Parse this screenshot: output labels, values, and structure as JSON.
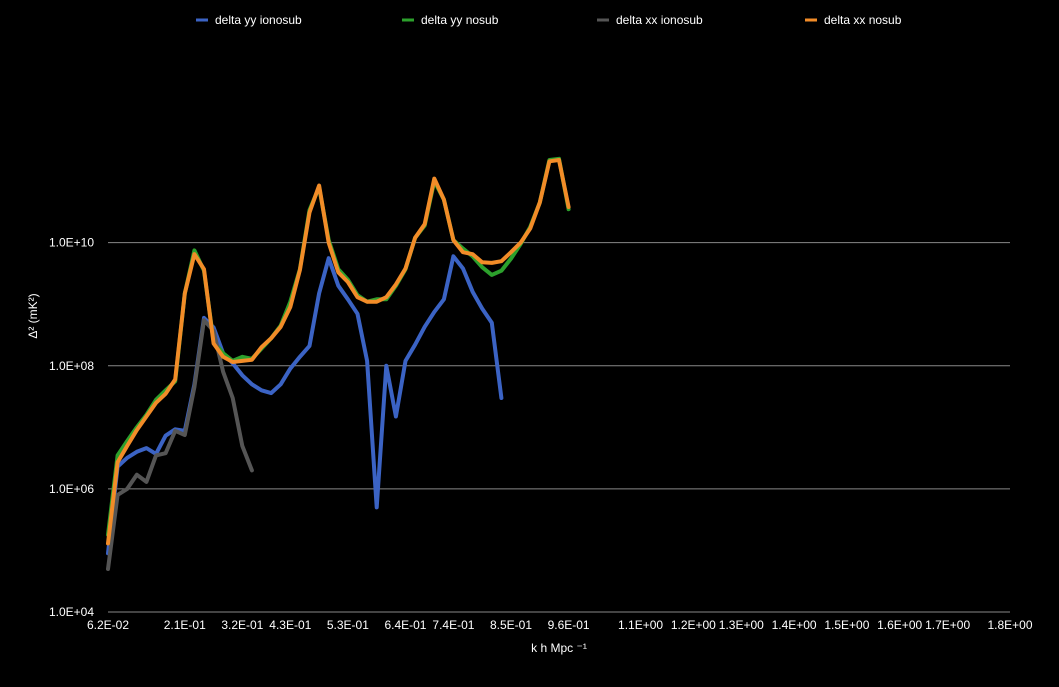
{
  "chart_data": {
    "type": "line",
    "xlabel": "k h Mpc ⁻¹",
    "ylabel": "Δ² (mK²)",
    "y_scale": "log",
    "ylim": [
      10000,
      10000000000000
    ],
    "y_ticks": [
      10000,
      1000000,
      100000000,
      10000000000
    ],
    "y_tick_labels": [
      "1.0E+04",
      "1.0E+06",
      "1.0E+08",
      "1.0E+10"
    ],
    "grid": true,
    "legend_position": "top",
    "x_ticks": [
      0.062,
      0.21,
      0.32,
      0.43,
      0.53,
      0.64,
      0.74,
      0.85,
      0.96,
      1.1,
      1.2,
      1.3,
      1.4,
      1.5,
      1.6,
      1.7,
      1.8
    ],
    "x_tick_labels": [
      "6.2E-02",
      "2.1E-01",
      "3.2E-01",
      "4.3E-01",
      "5.3E-01",
      "6.4E-01",
      "7.4E-01",
      "8.5E-01",
      "9.6E-01",
      "1.1E+00",
      "1.2E+00",
      "1.3E+00",
      "1.4E+00",
      "1.5E+00",
      "1.6E+00",
      "1.7E+00",
      "1.8E+00"
    ],
    "x": [
      0.062,
      0.081,
      0.1,
      0.12,
      0.14,
      0.16,
      0.17,
      0.19,
      0.21,
      0.23,
      0.25,
      0.27,
      0.29,
      0.3,
      0.32,
      0.34,
      0.36,
      0.38,
      0.4,
      0.43,
      0.44,
      0.46,
      0.48,
      0.5,
      0.52,
      0.53,
      0.55,
      0.57,
      0.59,
      0.61,
      0.63,
      0.64,
      0.66,
      0.68,
      0.7,
      0.72,
      0.74,
      0.76,
      0.78,
      0.8,
      0.81,
      0.83,
      0.85,
      0.87,
      0.89,
      0.91,
      0.93,
      0.94,
      0.96,
      0.98,
      1.0,
      1.02,
      1.04,
      1.06,
      1.07,
      1.09,
      1.11,
      1.13,
      1.15,
      1.17,
      1.19,
      1.2,
      1.22,
      1.24,
      1.26,
      1.28,
      1.3,
      1.32,
      1.33,
      1.35,
      1.37,
      1.39,
      1.41,
      1.43,
      1.45,
      1.46,
      1.48,
      1.5,
      1.52,
      1.54,
      1.56,
      1.58,
      1.59,
      1.61,
      1.63,
      1.65,
      1.67,
      1.69,
      1.71,
      1.72,
      1.74,
      1.76,
      1.78,
      1.8,
      1.82
    ],
    "series": [
      {
        "name": "delta yy ionosub",
        "color": "#3b63c4",
        "values": [
          90000,
          2300000,
          3200000,
          4000000,
          4600000,
          3700000,
          7300000,
          9300000,
          8800000,
          50000000,
          600000000,
          420000000,
          160000000,
          110000000,
          70000000,
          50000000,
          40000000,
          36000000,
          50000000,
          90000000,
          140000000,
          210000000,
          1500000000,
          5600000000,
          2000000000,
          1200000000,
          700000000,
          120000000,
          500000,
          100000000,
          15000000,
          120000000,
          220000000,
          430000000,
          750000000,
          1200000000,
          6000000000,
          3800000000,
          1600000000,
          850000000,
          500000000,
          30000000,
          null,
          null,
          null,
          null,
          null,
          null,
          null,
          null,
          null,
          null,
          null,
          null,
          null,
          null,
          null,
          null,
          null,
          null,
          null,
          null,
          null,
          null,
          null,
          null,
          null,
          null,
          null,
          null,
          null,
          null,
          null,
          null,
          null,
          null,
          null,
          null,
          null,
          null,
          null,
          null,
          null,
          null,
          null,
          null,
          null,
          null,
          null,
          null,
          null,
          null,
          null,
          null,
          null
        ]
      },
      {
        "name": "delta yy nosub",
        "color": "#2ca02c",
        "values": [
          180000,
          3500000,
          6000000,
          10000000,
          16000000,
          28000000,
          40000000,
          56000000,
          1500000000,
          7500000000,
          3500000000,
          250000000,
          160000000,
          120000000,
          140000000,
          130000000,
          190000000,
          280000000,
          450000000,
          1100000000,
          3700000000,
          34000000000,
          80000000000,
          11000000000,
          3700000000,
          2500000000,
          1400000000,
          1100000000,
          1200000000,
          1200000000,
          2000000000,
          3700000000,
          12000000000,
          19000000000,
          100000000000,
          50000000000,
          11000000000,
          8000000000,
          6000000000,
          4000000000,
          3000000000,
          3500000000,
          5500000000,
          9500000000,
          18000000000,
          45000000000,
          220000000000,
          230000000000,
          35000000000,
          null,
          null,
          null,
          null,
          null,
          null,
          null,
          null,
          null,
          null,
          null,
          null,
          null,
          null,
          null,
          null,
          null,
          null,
          null,
          null,
          null,
          null,
          null,
          null,
          null,
          null,
          null,
          null,
          null,
          null,
          null,
          null,
          null,
          null,
          null,
          null,
          null,
          null,
          null,
          null,
          null,
          null,
          null,
          null,
          null,
          null
        ]
      },
      {
        "name": "delta xx ionosub",
        "color": "#555555",
        "values": [
          50000,
          800000,
          1000000,
          1700000,
          1300000,
          3500000,
          3800000,
          8800000,
          7500000,
          45000000,
          550000000,
          370000000,
          80000000,
          30000000,
          5000000,
          2000000,
          null,
          null,
          null,
          null,
          null,
          null,
          null,
          null,
          null,
          null,
          null,
          null,
          null,
          null,
          null,
          null,
          null,
          null,
          null,
          null,
          null,
          null,
          null,
          null,
          null,
          null,
          null,
          null,
          null,
          null,
          null,
          null,
          null,
          null,
          null,
          null,
          null,
          null,
          null,
          null,
          null,
          null,
          null,
          null,
          null,
          null,
          null,
          null,
          null,
          null,
          null,
          null,
          null,
          null,
          null,
          null,
          null,
          null,
          null,
          null,
          null,
          null,
          null,
          null,
          null,
          null,
          null,
          null,
          null,
          null,
          null,
          null,
          null,
          null,
          null,
          null,
          null,
          null,
          null
        ]
      },
      {
        "name": "delta xx nosub",
        "color": "#f28c28",
        "values": [
          130000,
          2700000,
          5000000,
          9000000,
          15000000,
          25000000,
          35000000,
          60000000,
          1500000000,
          6500000000,
          3700000000,
          230000000,
          140000000,
          115000000,
          120000000,
          125000000,
          200000000,
          280000000,
          430000000,
          900000000,
          3600000000,
          31000000000,
          85000000000,
          10000000000,
          3300000000,
          2300000000,
          1300000000,
          1100000000,
          1100000000,
          1300000000,
          2100000000,
          3800000000,
          12000000000,
          20000000000,
          110000000000,
          50000000000,
          11000000000,
          7000000000,
          6500000000,
          4800000000,
          4700000000,
          5000000000,
          7000000000,
          10000000000,
          17000000000,
          45000000000,
          210000000000,
          220000000000,
          38000000000,
          null,
          null,
          null,
          null,
          null,
          null,
          null,
          null,
          null,
          null,
          null,
          null,
          null,
          null,
          null,
          null,
          null,
          null,
          null,
          null,
          null,
          null,
          null,
          null,
          null,
          null,
          null,
          null,
          null,
          null,
          null,
          null,
          null,
          null,
          null,
          null,
          null,
          null,
          null,
          null,
          null,
          null,
          null,
          null,
          null,
          null
        ]
      }
    ]
  }
}
